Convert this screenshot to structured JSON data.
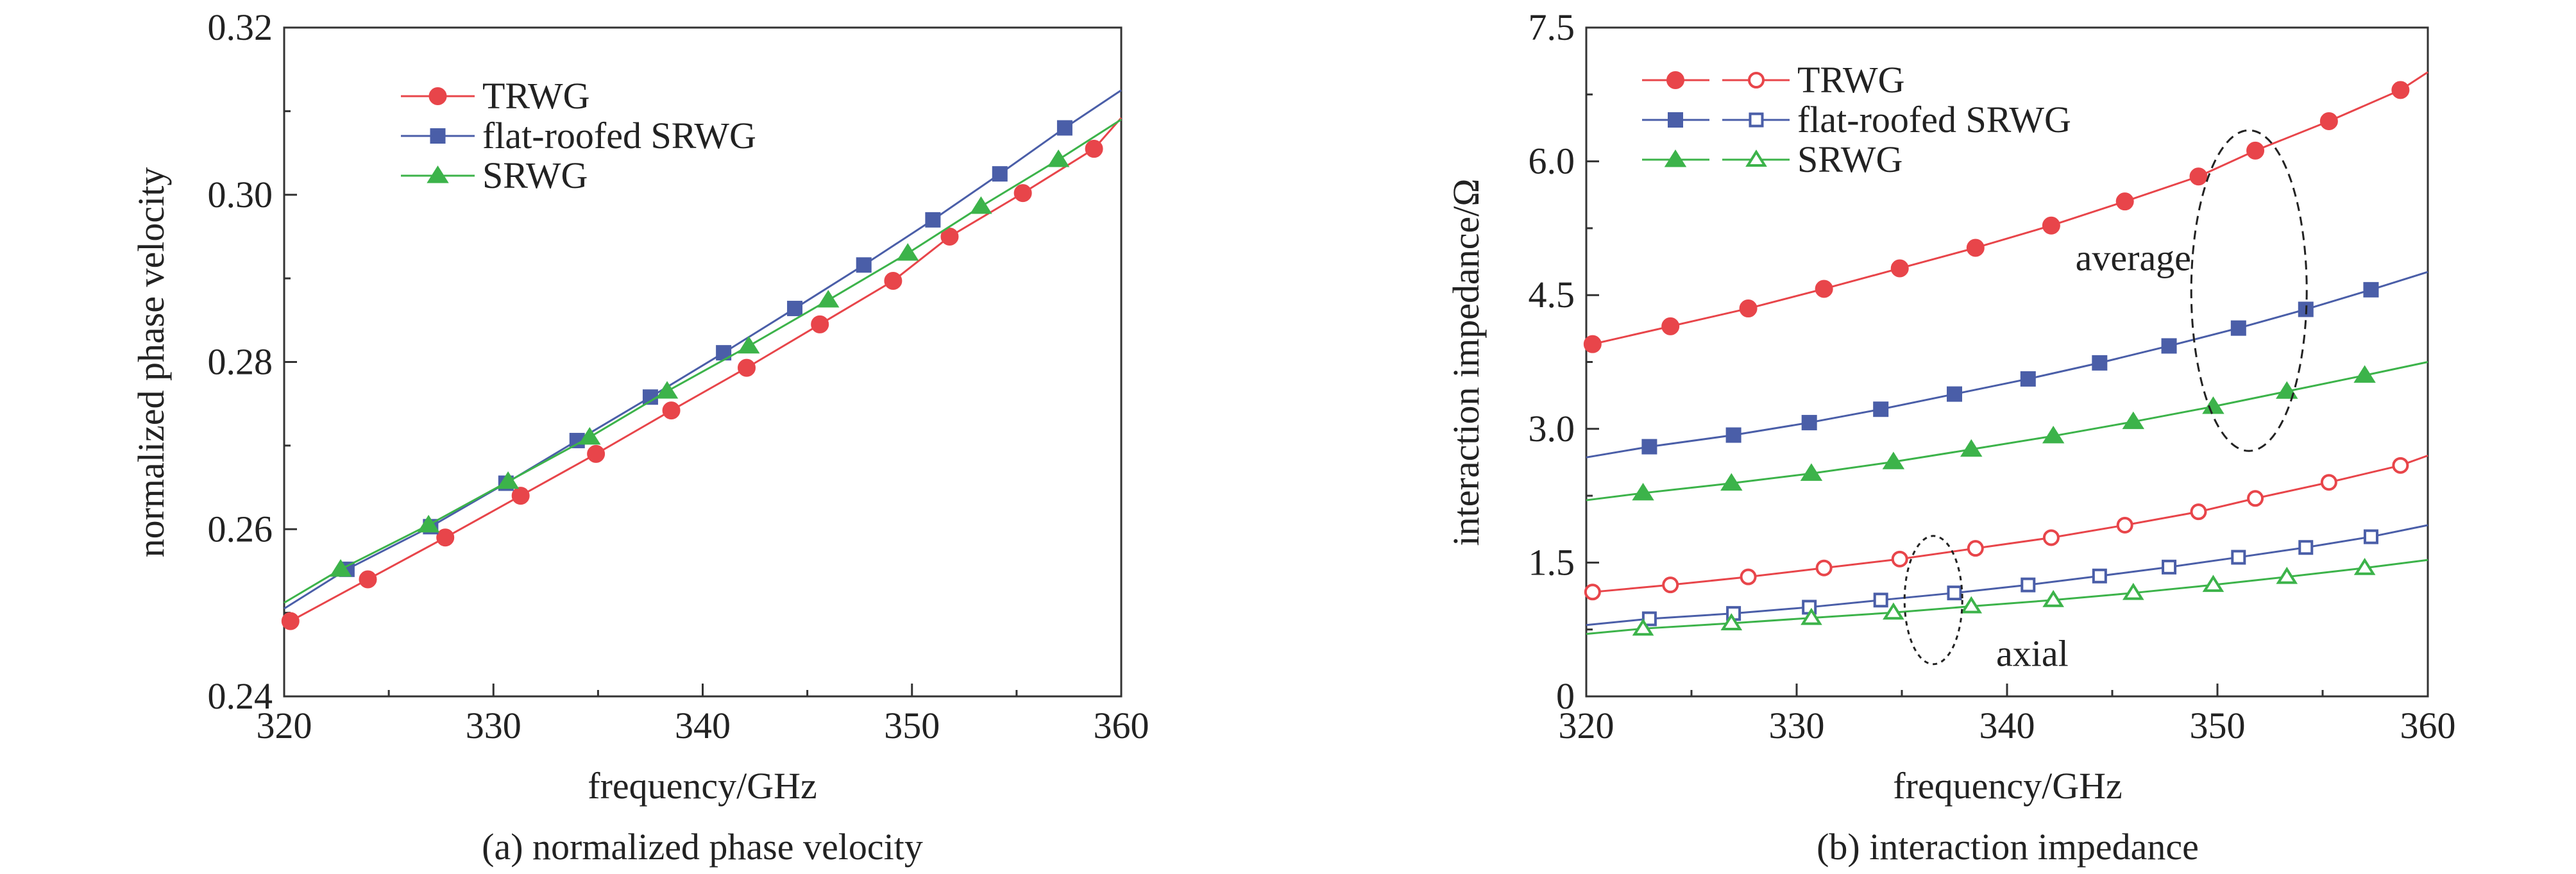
{
  "chart_data": [
    {
      "type": "line",
      "xlabel": "frequency/GHz",
      "ylabel": "normalized phase velocity",
      "caption": "(a) normalized phase velocity",
      "xlim": [
        320,
        360
      ],
      "ylim": [
        0.24,
        0.32
      ],
      "xticks": [
        "320",
        "330",
        "340",
        "350",
        "360"
      ],
      "yticks": [
        "0.24",
        "0.26",
        "0.28",
        "0.30",
        "0.32"
      ],
      "legend_position": "top-left",
      "series": [
        {
          "name": "TRWG",
          "color": "#e8454a",
          "marker": "circle",
          "filled": true,
          "x": [
            320,
            360
          ],
          "y": [
            0.2488,
            0.3092
          ],
          "marker_x": [
            320.3,
            324.0,
            327.7,
            331.3,
            334.9,
            338.5,
            342.1,
            345.6,
            349.1,
            351.8,
            355.3,
            358.7
          ],
          "marker_y": [
            0.249,
            0.254,
            0.259,
            0.264,
            0.269,
            0.2742,
            0.2793,
            0.2845,
            0.2897,
            0.295,
            0.3002,
            0.3055
          ]
        },
        {
          "name": "flat-roofed SRWG",
          "color": "#4a5ea8",
          "marker": "square",
          "filled": true,
          "x": [
            320,
            360
          ],
          "y": [
            0.2505,
            0.3125
          ],
          "marker_x": [
            323.0,
            327.0,
            330.6,
            334.0,
            337.5,
            341.0,
            344.4,
            347.7,
            351.0,
            354.2,
            357.3
          ],
          "marker_y": [
            0.2552,
            0.2603,
            0.2655,
            0.2706,
            0.2758,
            0.2811,
            0.2864,
            0.2916,
            0.297,
            0.3025,
            0.308
          ]
        },
        {
          "name": "SRWG",
          "color": "#3cb34a",
          "marker": "triangle",
          "filled": true,
          "x": [
            320,
            360
          ],
          "y": [
            0.2512,
            0.309
          ],
          "marker_x": [
            322.7,
            326.9,
            330.7,
            334.6,
            338.3,
            342.2,
            346.0,
            349.8,
            353.3,
            357.0
          ],
          "marker_y": [
            0.2552,
            0.2605,
            0.2657,
            0.271,
            0.2765,
            0.2819,
            0.2874,
            0.293,
            0.2986,
            0.3042
          ]
        }
      ]
    },
    {
      "type": "line",
      "xlabel": "frequency/GHz",
      "ylabel": "interaction impedance/Ω",
      "caption": "(b) interaction impedance",
      "xlim": [
        320,
        360
      ],
      "ylim": [
        0,
        7.5
      ],
      "xticks": [
        "320",
        "330",
        "340",
        "350",
        "360"
      ],
      "yticks": [
        "0",
        "1.5",
        "3.0",
        "4.5",
        "6.0",
        "7.5"
      ],
      "legend_position": "top-left",
      "legend": [
        {
          "name": "TRWG",
          "color": "#e8454a",
          "marker": "circle"
        },
        {
          "name": "flat-roofed SRWG",
          "color": "#4a5ea8",
          "marker": "square"
        },
        {
          "name": "SRWG",
          "color": "#3cb34a",
          "marker": "triangle"
        }
      ],
      "annotations": [
        {
          "text": "average",
          "target_x": 351.5,
          "target_y": 4.6
        },
        {
          "text": "axial",
          "target_x": 336.5,
          "target_y": 1.1
        }
      ],
      "series": [
        {
          "name": "TRWG average",
          "color": "#e8454a",
          "marker": "circle",
          "filled": true,
          "x": [
            320,
            330,
            340,
            350,
            360
          ],
          "y": [
            3.9,
            4.42,
            5.05,
            5.9,
            7.0
          ],
          "marker_x": [
            320.3,
            324.0,
            327.7,
            331.3,
            334.9,
            338.5,
            342.1,
            345.6,
            349.1,
            351.8,
            355.3,
            358.7
          ],
          "marker_y": [
            3.95,
            4.15,
            4.35,
            4.57,
            4.8,
            5.03,
            5.28,
            5.55,
            5.83,
            6.12,
            6.45,
            6.8
          ]
        },
        {
          "name": "flat-roofed SRWG average",
          "color": "#4a5ea8",
          "marker": "square",
          "filled": true,
          "x": [
            320,
            330,
            340,
            350,
            360
          ],
          "y": [
            2.68,
            3.02,
            3.47,
            4.05,
            4.76
          ],
          "marker_x": [
            323.0,
            327.0,
            330.6,
            334.0,
            337.5,
            341.0,
            344.4,
            347.7,
            351.0,
            354.2,
            357.3
          ],
          "marker_y": [
            2.8,
            2.93,
            3.07,
            3.22,
            3.39,
            3.56,
            3.74,
            3.93,
            4.13,
            4.34,
            4.56
          ]
        },
        {
          "name": "SRWG average",
          "color": "#3cb34a",
          "marker": "triangle",
          "filled": true,
          "x": [
            320,
            330,
            340,
            350,
            360
          ],
          "y": [
            2.2,
            2.47,
            2.82,
            3.22,
            3.75
          ],
          "marker_x": [
            322.7,
            326.9,
            330.7,
            334.6,
            338.3,
            342.2,
            346.0,
            349.8,
            353.3,
            357.0
          ],
          "marker_y": [
            2.28,
            2.39,
            2.5,
            2.63,
            2.77,
            2.92,
            3.08,
            3.25,
            3.42,
            3.6
          ]
        },
        {
          "name": "TRWG axial",
          "color": "#e8454a",
          "marker": "circle",
          "filled": false,
          "x": [
            320,
            330,
            340,
            350,
            360
          ],
          "y": [
            1.14,
            1.4,
            1.72,
            2.12,
            2.7
          ],
          "marker_x": [
            320.3,
            324.0,
            327.7,
            331.3,
            334.9,
            338.5,
            342.1,
            345.6,
            349.1,
            351.8,
            355.3,
            358.7
          ],
          "marker_y": [
            1.17,
            1.25,
            1.34,
            1.44,
            1.54,
            1.66,
            1.78,
            1.92,
            2.07,
            2.22,
            2.4,
            2.59
          ]
        },
        {
          "name": "flat-roofed SRWG axial",
          "color": "#4a5ea8",
          "marker": "square",
          "filled": false,
          "x": [
            320,
            330,
            340,
            350,
            360
          ],
          "y": [
            0.8,
            0.98,
            1.22,
            1.53,
            1.92
          ],
          "marker_x": [
            323.0,
            327.0,
            330.6,
            334.0,
            337.5,
            341.0,
            344.4,
            347.7,
            351.0,
            354.2,
            357.3
          ],
          "marker_y": [
            0.87,
            0.93,
            1.0,
            1.08,
            1.16,
            1.25,
            1.35,
            1.45,
            1.56,
            1.67,
            1.79
          ]
        },
        {
          "name": "SRWG axial",
          "color": "#3cb34a",
          "marker": "triangle",
          "filled": false,
          "x": [
            320,
            330,
            340,
            350,
            360
          ],
          "y": [
            0.7,
            0.85,
            1.02,
            1.23,
            1.53
          ],
          "marker_x": [
            322.7,
            326.9,
            330.7,
            334.6,
            338.3,
            342.2,
            346.0,
            349.8,
            353.3,
            357.0
          ],
          "marker_y": [
            0.76,
            0.82,
            0.88,
            0.94,
            1.01,
            1.08,
            1.16,
            1.25,
            1.34,
            1.44
          ]
        }
      ]
    }
  ]
}
